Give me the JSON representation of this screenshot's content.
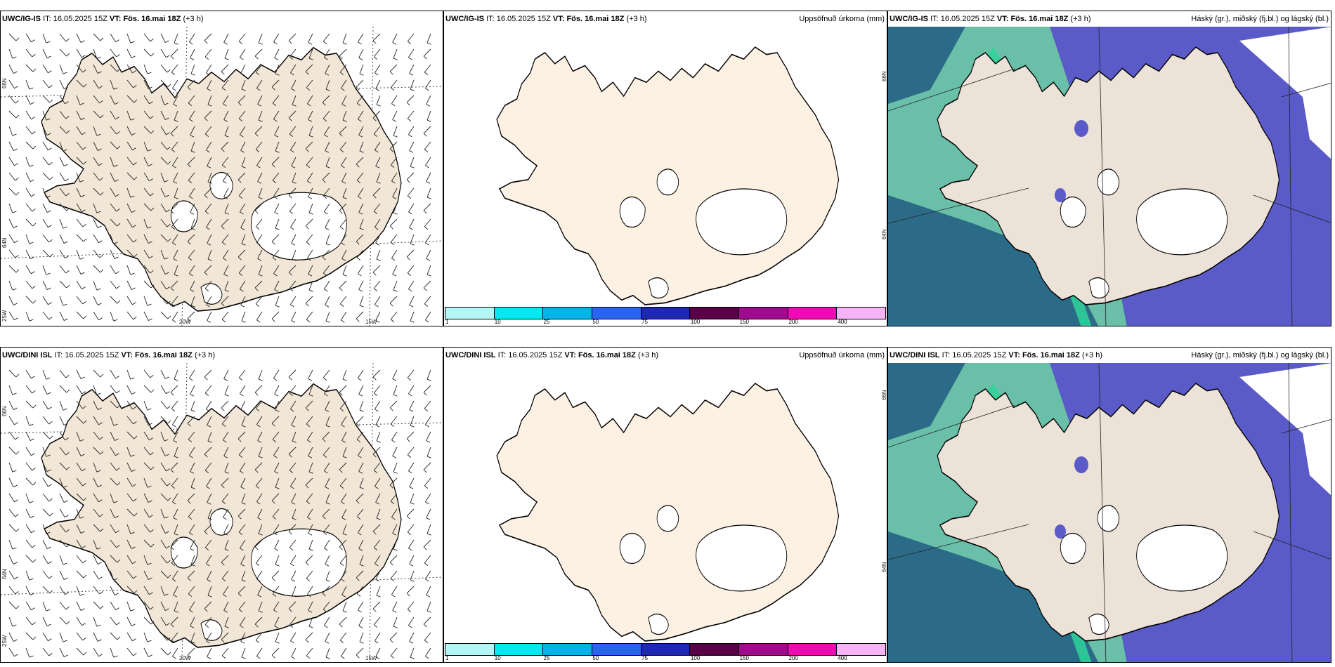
{
  "rows": [
    {
      "model": "UWC/IG-IS",
      "init_label": "IT:",
      "init_time": "16.05.2025 15Z",
      "valid_label": "VT:",
      "valid_time": "Fös. 16.mai 18Z",
      "lead": "(+3 h)",
      "precip_title": "Uppsöfnuð úrkoma (mm)",
      "cloud_title": "Háský (gr.), miðský (fj.bl.) og lágský (bl.)",
      "ticks": {
        "lat66": "66N",
        "lat64": "64N",
        "lon25": "25W",
        "lon20": "20W",
        "lon15": "15W",
        "p2_lat66": "66N",
        "p2_lat64": "64N"
      }
    },
    {
      "model": "UWC/DINI ISL",
      "init_label": "IT:",
      "init_time": "16.05.2025 15Z",
      "valid_label": "VT:",
      "valid_time": "Fös. 16.mai 18Z",
      "lead": "(+3 h)",
      "precip_title": "Uppsöfnuð úrkoma (mm)",
      "cloud_title": "Háský (gr.), miðský (fj.bl.) og lágský (bl.)",
      "ticks": {
        "lat66": "66N",
        "lat64": "64N",
        "lon25": "25W",
        "lon20": "20W",
        "lon15": "15W",
        "p2_lat66": "66N",
        "p2_lat64": "64N"
      }
    }
  ],
  "colorbar": {
    "labels": [
      "1",
      "10",
      "25",
      "50",
      "75",
      "100",
      "150",
      "200",
      "400"
    ],
    "colors": [
      "#b4f5f5",
      "#00e8f0",
      "#00b4e8",
      "#2864f0",
      "#1e28b4",
      "#5a0046",
      "#a00a8c",
      "#f00ab4",
      "#f5b4f5"
    ]
  },
  "map_colors": {
    "land_wind": "#f2e6d6",
    "land_precip": "#fdf1e3",
    "land_cloud": "#ede2d8",
    "low_cloud": "#5a5ac8",
    "mid_cloud": "#6abfa8",
    "high_cloud": "#2a9c8e",
    "shelf_dark": "#2b6b88",
    "green_band": "#2fd39a"
  }
}
